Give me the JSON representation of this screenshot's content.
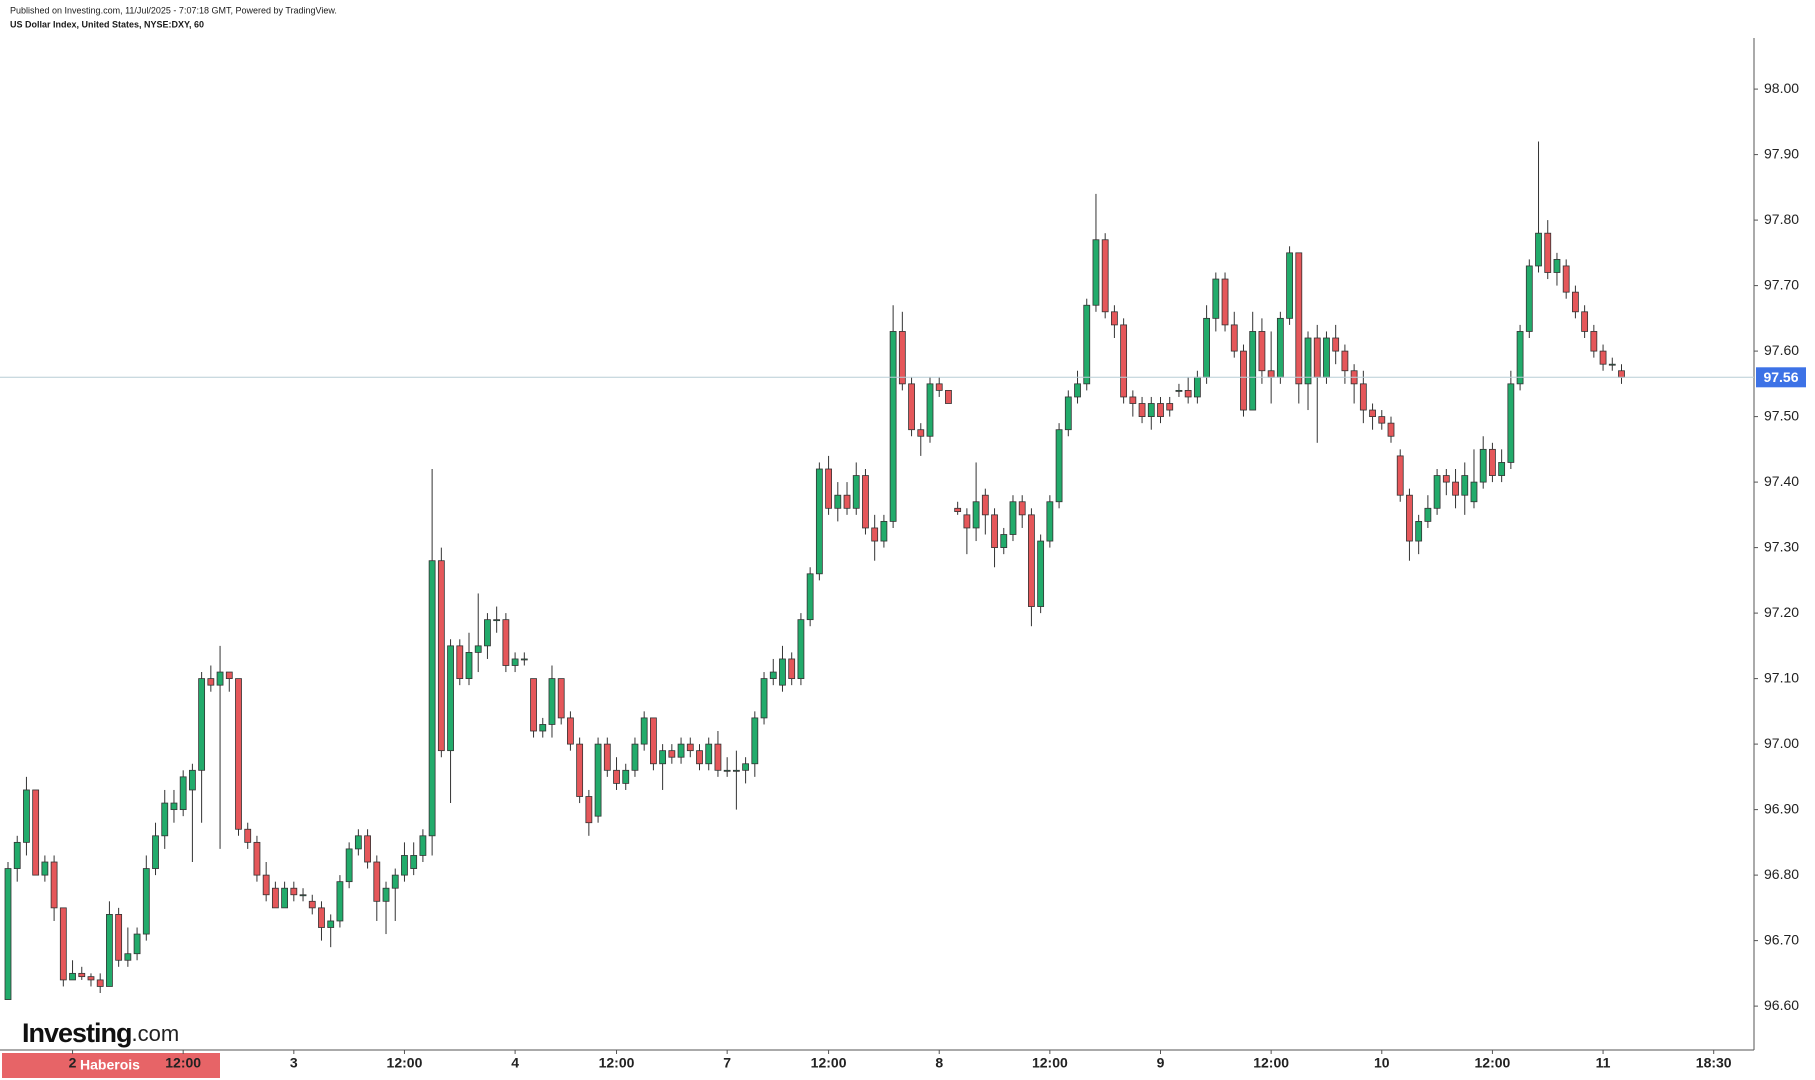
{
  "header": {
    "published": "Published on Investing.com, 11/Jul/2025 - 7:07:18 GMT, Powered by TradingView.",
    "instrument": "US Dollar Index, United States, NYSE:DXY, 60"
  },
  "logo": {
    "name": "Investing",
    "suffix": ".com"
  },
  "watermark": "Haberois",
  "chart_data": {
    "type": "candlestick",
    "up_color": "#22ab6b",
    "down_color": "#e5575a",
    "price_line_color": "#b8cdd6",
    "price_label_color": "#3d72e6",
    "last_price": 97.56,
    "ylim": [
      96.533,
      98.078
    ],
    "yticks": [
      {
        "value": 96.6,
        "label": "96.60"
      },
      {
        "value": 96.7,
        "label": "96.70"
      },
      {
        "value": 96.8,
        "label": "96.80"
      },
      {
        "value": 96.9,
        "label": "96.90"
      },
      {
        "value": 97,
        "label": "97.00"
      },
      {
        "value": 97.1,
        "label": "97.10"
      },
      {
        "value": 97.2,
        "label": "97.20"
      },
      {
        "value": 97.3,
        "label": "97.30"
      },
      {
        "value": 97.4,
        "label": "97.40"
      },
      {
        "value": 97.5,
        "label": "97.50"
      },
      {
        "value": 97.6,
        "label": "97.60"
      },
      {
        "value": 97.7,
        "label": "97.70"
      },
      {
        "value": 97.8,
        "label": "97.80"
      },
      {
        "value": 97.9,
        "label": "97.90"
      },
      {
        "value": 98,
        "label": "98.00"
      }
    ],
    "categories": [
      null,
      null,
      null,
      null,
      null,
      null,
      null,
      "2",
      null,
      null,
      null,
      null,
      null,
      null,
      null,
      null,
      null,
      null,
      null,
      "12:00",
      null,
      null,
      null,
      null,
      null,
      null,
      null,
      null,
      null,
      null,
      null,
      "3",
      null,
      null,
      null,
      null,
      null,
      null,
      null,
      null,
      null,
      null,
      null,
      "12:00",
      null,
      null,
      null,
      null,
      null,
      null,
      null,
      null,
      null,
      null,
      null,
      "4",
      null,
      null,
      null,
      null,
      null,
      null,
      null,
      null,
      null,
      null,
      "12:00",
      null,
      null,
      null,
      null,
      null,
      null,
      null,
      null,
      null,
      null,
      null,
      "7",
      null,
      null,
      null,
      null,
      null,
      null,
      null,
      null,
      null,
      null,
      "12:00",
      null,
      null,
      null,
      null,
      null,
      null,
      null,
      null,
      null,
      null,
      null,
      "8",
      null,
      null,
      null,
      null,
      null,
      null,
      null,
      null,
      null,
      null,
      null,
      "12:00",
      null,
      null,
      null,
      null,
      null,
      null,
      null,
      null,
      null,
      null,
      null,
      "9",
      null,
      null,
      null,
      null,
      null,
      null,
      null,
      null,
      null,
      null,
      null,
      "12:00",
      null,
      null,
      null,
      null,
      null,
      null,
      null,
      null,
      null,
      null,
      null,
      "10",
      null,
      null,
      null,
      null,
      null,
      null,
      null,
      null,
      null,
      null,
      null,
      "12:00",
      null,
      null,
      null,
      null,
      null,
      null,
      null,
      null,
      null,
      null,
      null,
      "11",
      null,
      null,
      null,
      null,
      null,
      null,
      null,
      null,
      null,
      null,
      null,
      "18:30"
    ],
    "ohlc": [
      [
        96.61,
        96.82,
        96.61,
        96.81
      ],
      [
        96.81,
        96.86,
        96.79,
        96.85
      ],
      [
        96.85,
        96.95,
        96.83,
        96.93
      ],
      [
        96.93,
        96.93,
        96.8,
        96.8
      ],
      [
        96.8,
        96.83,
        96.79,
        96.82
      ],
      [
        96.82,
        96.83,
        96.73,
        96.75
      ],
      [
        96.75,
        96.75,
        96.63,
        96.64
      ],
      [
        96.64,
        96.67,
        96.64,
        96.65
      ],
      [
        96.65,
        96.66,
        96.64,
        96.645
      ],
      [
        96.645,
        96.65,
        96.63,
        96.64
      ],
      [
        96.64,
        96.65,
        96.62,
        96.63
      ],
      [
        96.63,
        96.76,
        96.63,
        96.74
      ],
      [
        96.74,
        96.75,
        96.66,
        96.67
      ],
      [
        96.67,
        96.72,
        96.66,
        96.68
      ],
      [
        96.68,
        96.72,
        96.67,
        96.71
      ],
      [
        96.71,
        96.83,
        96.7,
        96.81
      ],
      [
        96.81,
        96.88,
        96.8,
        96.86
      ],
      [
        96.86,
        96.93,
        96.84,
        96.91
      ],
      [
        96.9,
        96.93,
        96.88,
        96.91
      ],
      [
        96.9,
        96.96,
        96.89,
        96.95
      ],
      [
        96.93,
        96.97,
        96.82,
        96.96
      ],
      [
        96.96,
        97.11,
        96.88,
        97.1
      ],
      [
        97.1,
        97.12,
        97.08,
        97.09
      ],
      [
        97.09,
        97.15,
        96.84,
        97.11
      ],
      [
        97.11,
        97.11,
        97.08,
        97.1
      ],
      [
        97.1,
        97.1,
        96.86,
        96.87
      ],
      [
        96.87,
        96.88,
        96.84,
        96.85
      ],
      [
        96.85,
        96.86,
        96.79,
        96.8
      ],
      [
        96.8,
        96.82,
        96.76,
        96.77
      ],
      [
        96.78,
        96.79,
        96.75,
        96.75
      ],
      [
        96.75,
        96.79,
        96.75,
        96.78
      ],
      [
        96.78,
        96.79,
        96.76,
        96.77
      ],
      [
        96.77,
        96.78,
        96.76,
        96.77
      ],
      [
        96.76,
        96.77,
        96.74,
        96.75
      ],
      [
        96.75,
        96.76,
        96.7,
        96.72
      ],
      [
        96.72,
        96.74,
        96.69,
        96.73
      ],
      [
        96.73,
        96.8,
        96.72,
        96.79
      ],
      [
        96.79,
        96.85,
        96.78,
        96.84
      ],
      [
        96.84,
        96.87,
        96.83,
        96.86
      ],
      [
        96.86,
        96.87,
        96.81,
        96.82
      ],
      [
        96.82,
        96.83,
        96.73,
        96.76
      ],
      [
        96.76,
        96.79,
        96.71,
        96.78
      ],
      [
        96.78,
        96.81,
        96.73,
        96.8
      ],
      [
        96.8,
        96.85,
        96.79,
        96.83
      ],
      [
        96.81,
        96.85,
        96.8,
        96.83
      ],
      [
        96.83,
        96.87,
        96.82,
        96.86
      ],
      [
        96.86,
        97.42,
        96.83,
        97.28
      ],
      [
        97.28,
        97.3,
        96.98,
        96.99
      ],
      [
        96.99,
        97.16,
        96.91,
        97.15
      ],
      [
        97.15,
        97.16,
        97.09,
        97.1
      ],
      [
        97.1,
        97.17,
        97.09,
        97.14
      ],
      [
        97.14,
        97.23,
        97.11,
        97.15
      ],
      [
        97.15,
        97.2,
        97.13,
        97.19
      ],
      [
        97.19,
        97.21,
        97.17,
        97.19
      ],
      [
        97.19,
        97.2,
        97.11,
        97.12
      ],
      [
        97.12,
        97.14,
        97.11,
        97.13
      ],
      [
        97.13,
        97.14,
        97.12,
        97.13
      ],
      [
        97.1,
        97.1,
        97.01,
        97.02
      ],
      [
        97.02,
        97.04,
        97.01,
        97.03
      ],
      [
        97.03,
        97.12,
        97.01,
        97.1
      ],
      [
        97.1,
        97.1,
        97.03,
        97.04
      ],
      [
        97.04,
        97.05,
        96.99,
        97
      ],
      [
        97,
        97.01,
        96.91,
        96.92
      ],
      [
        96.92,
        96.93,
        96.86,
        96.88
      ],
      [
        96.89,
        97.01,
        96.88,
        97
      ],
      [
        97,
        97.01,
        96.95,
        96.96
      ],
      [
        96.96,
        96.98,
        96.93,
        96.94
      ],
      [
        96.94,
        96.97,
        96.93,
        96.96
      ],
      [
        96.96,
        97.01,
        96.95,
        97
      ],
      [
        97,
        97.05,
        96.99,
        97.04
      ],
      [
        97.04,
        97.04,
        96.96,
        96.97
      ],
      [
        96.97,
        97,
        96.93,
        96.99
      ],
      [
        96.99,
        97,
        96.97,
        96.98
      ],
      [
        96.98,
        97.01,
        96.97,
        97
      ],
      [
        97,
        97.01,
        96.98,
        96.99
      ],
      [
        96.99,
        97,
        96.96,
        96.97
      ],
      [
        96.97,
        97.01,
        96.96,
        97
      ],
      [
        97,
        97.02,
        96.95,
        96.96
      ],
      [
        96.96,
        96.98,
        96.95,
        96.96
      ],
      [
        96.96,
        96.99,
        96.9,
        96.96
      ],
      [
        96.96,
        96.98,
        96.94,
        96.97
      ],
      [
        96.97,
        97.05,
        96.95,
        97.04
      ],
      [
        97.04,
        97.11,
        97.03,
        97.1
      ],
      [
        97.1,
        97.13,
        97.09,
        97.11
      ],
      [
        97.09,
        97.15,
        97.08,
        97.13
      ],
      [
        97.13,
        97.14,
        97.09,
        97.1
      ],
      [
        97.1,
        97.2,
        97.09,
        97.19
      ],
      [
        97.19,
        97.27,
        97.18,
        97.26
      ],
      [
        97.26,
        97.43,
        97.25,
        97.42
      ],
      [
        97.42,
        97.44,
        97.35,
        97.36
      ],
      [
        97.36,
        97.4,
        97.34,
        97.38
      ],
      [
        97.38,
        97.4,
        97.35,
        97.36
      ],
      [
        97.36,
        97.43,
        97.35,
        97.41
      ],
      [
        97.41,
        97.42,
        97.32,
        97.33
      ],
      [
        97.33,
        97.35,
        97.28,
        97.31
      ],
      [
        97.31,
        97.35,
        97.3,
        97.34
      ],
      [
        97.34,
        97.67,
        97.33,
        97.63
      ],
      [
        97.63,
        97.66,
        97.54,
        97.55
      ],
      [
        97.55,
        97.56,
        97.47,
        97.48
      ],
      [
        97.48,
        97.49,
        97.44,
        97.47
      ],
      [
        97.47,
        97.56,
        97.46,
        97.55
      ],
      [
        97.55,
        97.56,
        97.53,
        97.54
      ],
      [
        97.54,
        97.54,
        97.52,
        97.52
      ],
      [
        97.36,
        97.37,
        97.35,
        97.355
      ],
      [
        97.35,
        97.36,
        97.29,
        97.33
      ],
      [
        97.33,
        97.43,
        97.31,
        97.37
      ],
      [
        97.38,
        97.39,
        97.32,
        97.35
      ],
      [
        97.35,
        97.36,
        97.27,
        97.3
      ],
      [
        97.3,
        97.33,
        97.29,
        97.32
      ],
      [
        97.32,
        97.38,
        97.31,
        97.37
      ],
      [
        97.37,
        97.38,
        97.33,
        97.35
      ],
      [
        97.35,
        97.36,
        97.18,
        97.21
      ],
      [
        97.21,
        97.32,
        97.2,
        97.31
      ],
      [
        97.31,
        97.38,
        97.3,
        97.37
      ],
      [
        97.37,
        97.49,
        97.36,
        97.48
      ],
      [
        97.48,
        97.54,
        97.47,
        97.53
      ],
      [
        97.53,
        97.57,
        97.52,
        97.55
      ],
      [
        97.55,
        97.68,
        97.54,
        97.67
      ],
      [
        97.67,
        97.84,
        97.66,
        97.77
      ],
      [
        97.77,
        97.78,
        97.65,
        97.66
      ],
      [
        97.66,
        97.67,
        97.62,
        97.64
      ],
      [
        97.64,
        97.65,
        97.52,
        97.53
      ],
      [
        97.53,
        97.54,
        97.5,
        97.52
      ],
      [
        97.52,
        97.53,
        97.49,
        97.5
      ],
      [
        97.5,
        97.53,
        97.48,
        97.52
      ],
      [
        97.52,
        97.53,
        97.49,
        97.5
      ],
      [
        97.52,
        97.53,
        97.5,
        97.51
      ],
      [
        97.54,
        97.55,
        97.53,
        97.54
      ],
      [
        97.54,
        97.56,
        97.52,
        97.53
      ],
      [
        97.53,
        97.57,
        97.52,
        97.56
      ],
      [
        97.56,
        97.67,
        97.55,
        97.65
      ],
      [
        97.65,
        97.72,
        97.63,
        97.71
      ],
      [
        97.71,
        97.72,
        97.63,
        97.64
      ],
      [
        97.64,
        97.66,
        97.59,
        97.6
      ],
      [
        97.6,
        97.61,
        97.5,
        97.51
      ],
      [
        97.51,
        97.66,
        97.51,
        97.63
      ],
      [
        97.63,
        97.65,
        97.55,
        97.57
      ],
      [
        97.57,
        97.63,
        97.52,
        97.56
      ],
      [
        97.56,
        97.66,
        97.55,
        97.65
      ],
      [
        97.65,
        97.76,
        97.64,
        97.75
      ],
      [
        97.75,
        97.75,
        97.52,
        97.55
      ],
      [
        97.55,
        97.63,
        97.51,
        97.62
      ],
      [
        97.62,
        97.64,
        97.46,
        97.56
      ],
      [
        97.56,
        97.63,
        97.55,
        97.62
      ],
      [
        97.62,
        97.64,
        97.58,
        97.6
      ],
      [
        97.6,
        97.61,
        97.55,
        97.57
      ],
      [
        97.57,
        97.58,
        97.52,
        97.55
      ],
      [
        97.55,
        97.57,
        97.49,
        97.51
      ],
      [
        97.51,
        97.52,
        97.48,
        97.5
      ],
      [
        97.5,
        97.51,
        97.48,
        97.49
      ],
      [
        97.49,
        97.5,
        97.46,
        97.47
      ],
      [
        97.44,
        97.45,
        97.37,
        97.38
      ],
      [
        97.38,
        97.39,
        97.28,
        97.31
      ],
      [
        97.31,
        97.35,
        97.29,
        97.34
      ],
      [
        97.34,
        97.38,
        97.33,
        97.36
      ],
      [
        97.36,
        97.42,
        97.35,
        97.41
      ],
      [
        97.41,
        97.42,
        97.38,
        97.4
      ],
      [
        97.4,
        97.42,
        97.36,
        97.38
      ],
      [
        97.38,
        97.43,
        97.35,
        97.41
      ],
      [
        97.37,
        97.45,
        97.36,
        97.4
      ],
      [
        97.4,
        97.47,
        97.39,
        97.45
      ],
      [
        97.45,
        97.46,
        97.4,
        97.41
      ],
      [
        97.41,
        97.45,
        97.4,
        97.43
      ],
      [
        97.43,
        97.57,
        97.42,
        97.55
      ],
      [
        97.55,
        97.64,
        97.54,
        97.63
      ],
      [
        97.63,
        97.74,
        97.62,
        97.73
      ],
      [
        97.73,
        97.92,
        97.72,
        97.78
      ],
      [
        97.78,
        97.8,
        97.71,
        97.72
      ],
      [
        97.72,
        97.75,
        97.7,
        97.74
      ],
      [
        97.73,
        97.74,
        97.68,
        97.69
      ],
      [
        97.69,
        97.7,
        97.65,
        97.66
      ],
      [
        97.66,
        97.67,
        97.62,
        97.63
      ],
      [
        97.63,
        97.64,
        97.59,
        97.6
      ],
      [
        97.6,
        97.61,
        97.57,
        97.58
      ],
      [
        97.58,
        97.59,
        97.57,
        97.58
      ],
      [
        97.57,
        97.58,
        97.55,
        97.56
      ],
      null,
      null,
      null,
      null,
      null,
      null,
      null,
      null,
      null,
      null
    ]
  }
}
